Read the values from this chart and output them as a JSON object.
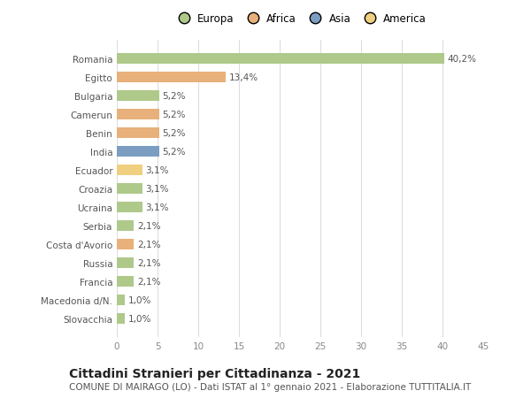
{
  "categories": [
    "Romania",
    "Egitto",
    "Bulgaria",
    "Camerun",
    "Benin",
    "India",
    "Ecuador",
    "Croazia",
    "Ucraina",
    "Serbia",
    "Costa d'Avorio",
    "Russia",
    "Francia",
    "Macedonia d/N.",
    "Slovacchia"
  ],
  "values": [
    40.2,
    13.4,
    5.2,
    5.2,
    5.2,
    5.2,
    3.1,
    3.1,
    3.1,
    2.1,
    2.1,
    2.1,
    2.1,
    1.0,
    1.0
  ],
  "labels": [
    "40,2%",
    "13,4%",
    "5,2%",
    "5,2%",
    "5,2%",
    "5,2%",
    "3,1%",
    "3,1%",
    "3,1%",
    "2,1%",
    "2,1%",
    "2,1%",
    "2,1%",
    "1,0%",
    "1,0%"
  ],
  "colors": [
    "#aec98a",
    "#e8b07a",
    "#aec98a",
    "#e8b07a",
    "#e8b07a",
    "#7b9dc2",
    "#f0d080",
    "#aec98a",
    "#aec98a",
    "#aec98a",
    "#e8b07a",
    "#aec98a",
    "#aec98a",
    "#aec98a",
    "#aec98a"
  ],
  "legend_labels": [
    "Europa",
    "Africa",
    "Asia",
    "America"
  ],
  "legend_colors": [
    "#aec98a",
    "#e8b07a",
    "#7b9dc2",
    "#f0d080"
  ],
  "xlim": [
    0,
    45
  ],
  "xticks": [
    0,
    5,
    10,
    15,
    20,
    25,
    30,
    35,
    40,
    45
  ],
  "title": "Cittadini Stranieri per Cittadinanza - 2021",
  "subtitle": "COMUNE DI MAIRAGO (LO) - Dati ISTAT al 1° gennaio 2021 - Elaborazione TUTTITALIA.IT",
  "background_color": "#ffffff",
  "grid_color": "#dddddd",
  "bar_height": 0.55,
  "label_fontsize": 7.5,
  "tick_fontsize": 7.5,
  "title_fontsize": 10,
  "subtitle_fontsize": 7.5
}
